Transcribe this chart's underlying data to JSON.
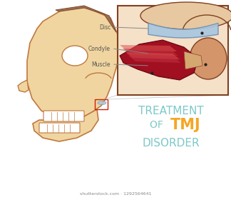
{
  "bg_color": "#ffffff",
  "title_line1": "TREATMENT",
  "title_line2_part1": "OF ",
  "title_line2_part2": "TMJ",
  "title_line3": "DISORDER",
  "title_color_light": "#7ec8c8",
  "title_color_orange": "#f5a623",
  "label_disc": "Disc",
  "label_condyle": "Condyle",
  "label_muscle": "Muscle",
  "label_color": "#555555",
  "label_fontsize": 5.5,
  "skull_color": "#f0d5a0",
  "skull_outline": "#c07840",
  "muscle_red": "#a01020",
  "muscle_light": "#e05050",
  "disc_blue": "#a8c8e0",
  "disc_dark": "#7090b0",
  "skin_color": "#d4956a",
  "zoom_box_color": "#f5e0c8",
  "zoom_box_outline": "#804020",
  "red_rect_color": "#cc2200",
  "watermark": "shutterstock.com · 1292564641",
  "watermark_color": "#888888",
  "watermark_fontsize": 4.5
}
